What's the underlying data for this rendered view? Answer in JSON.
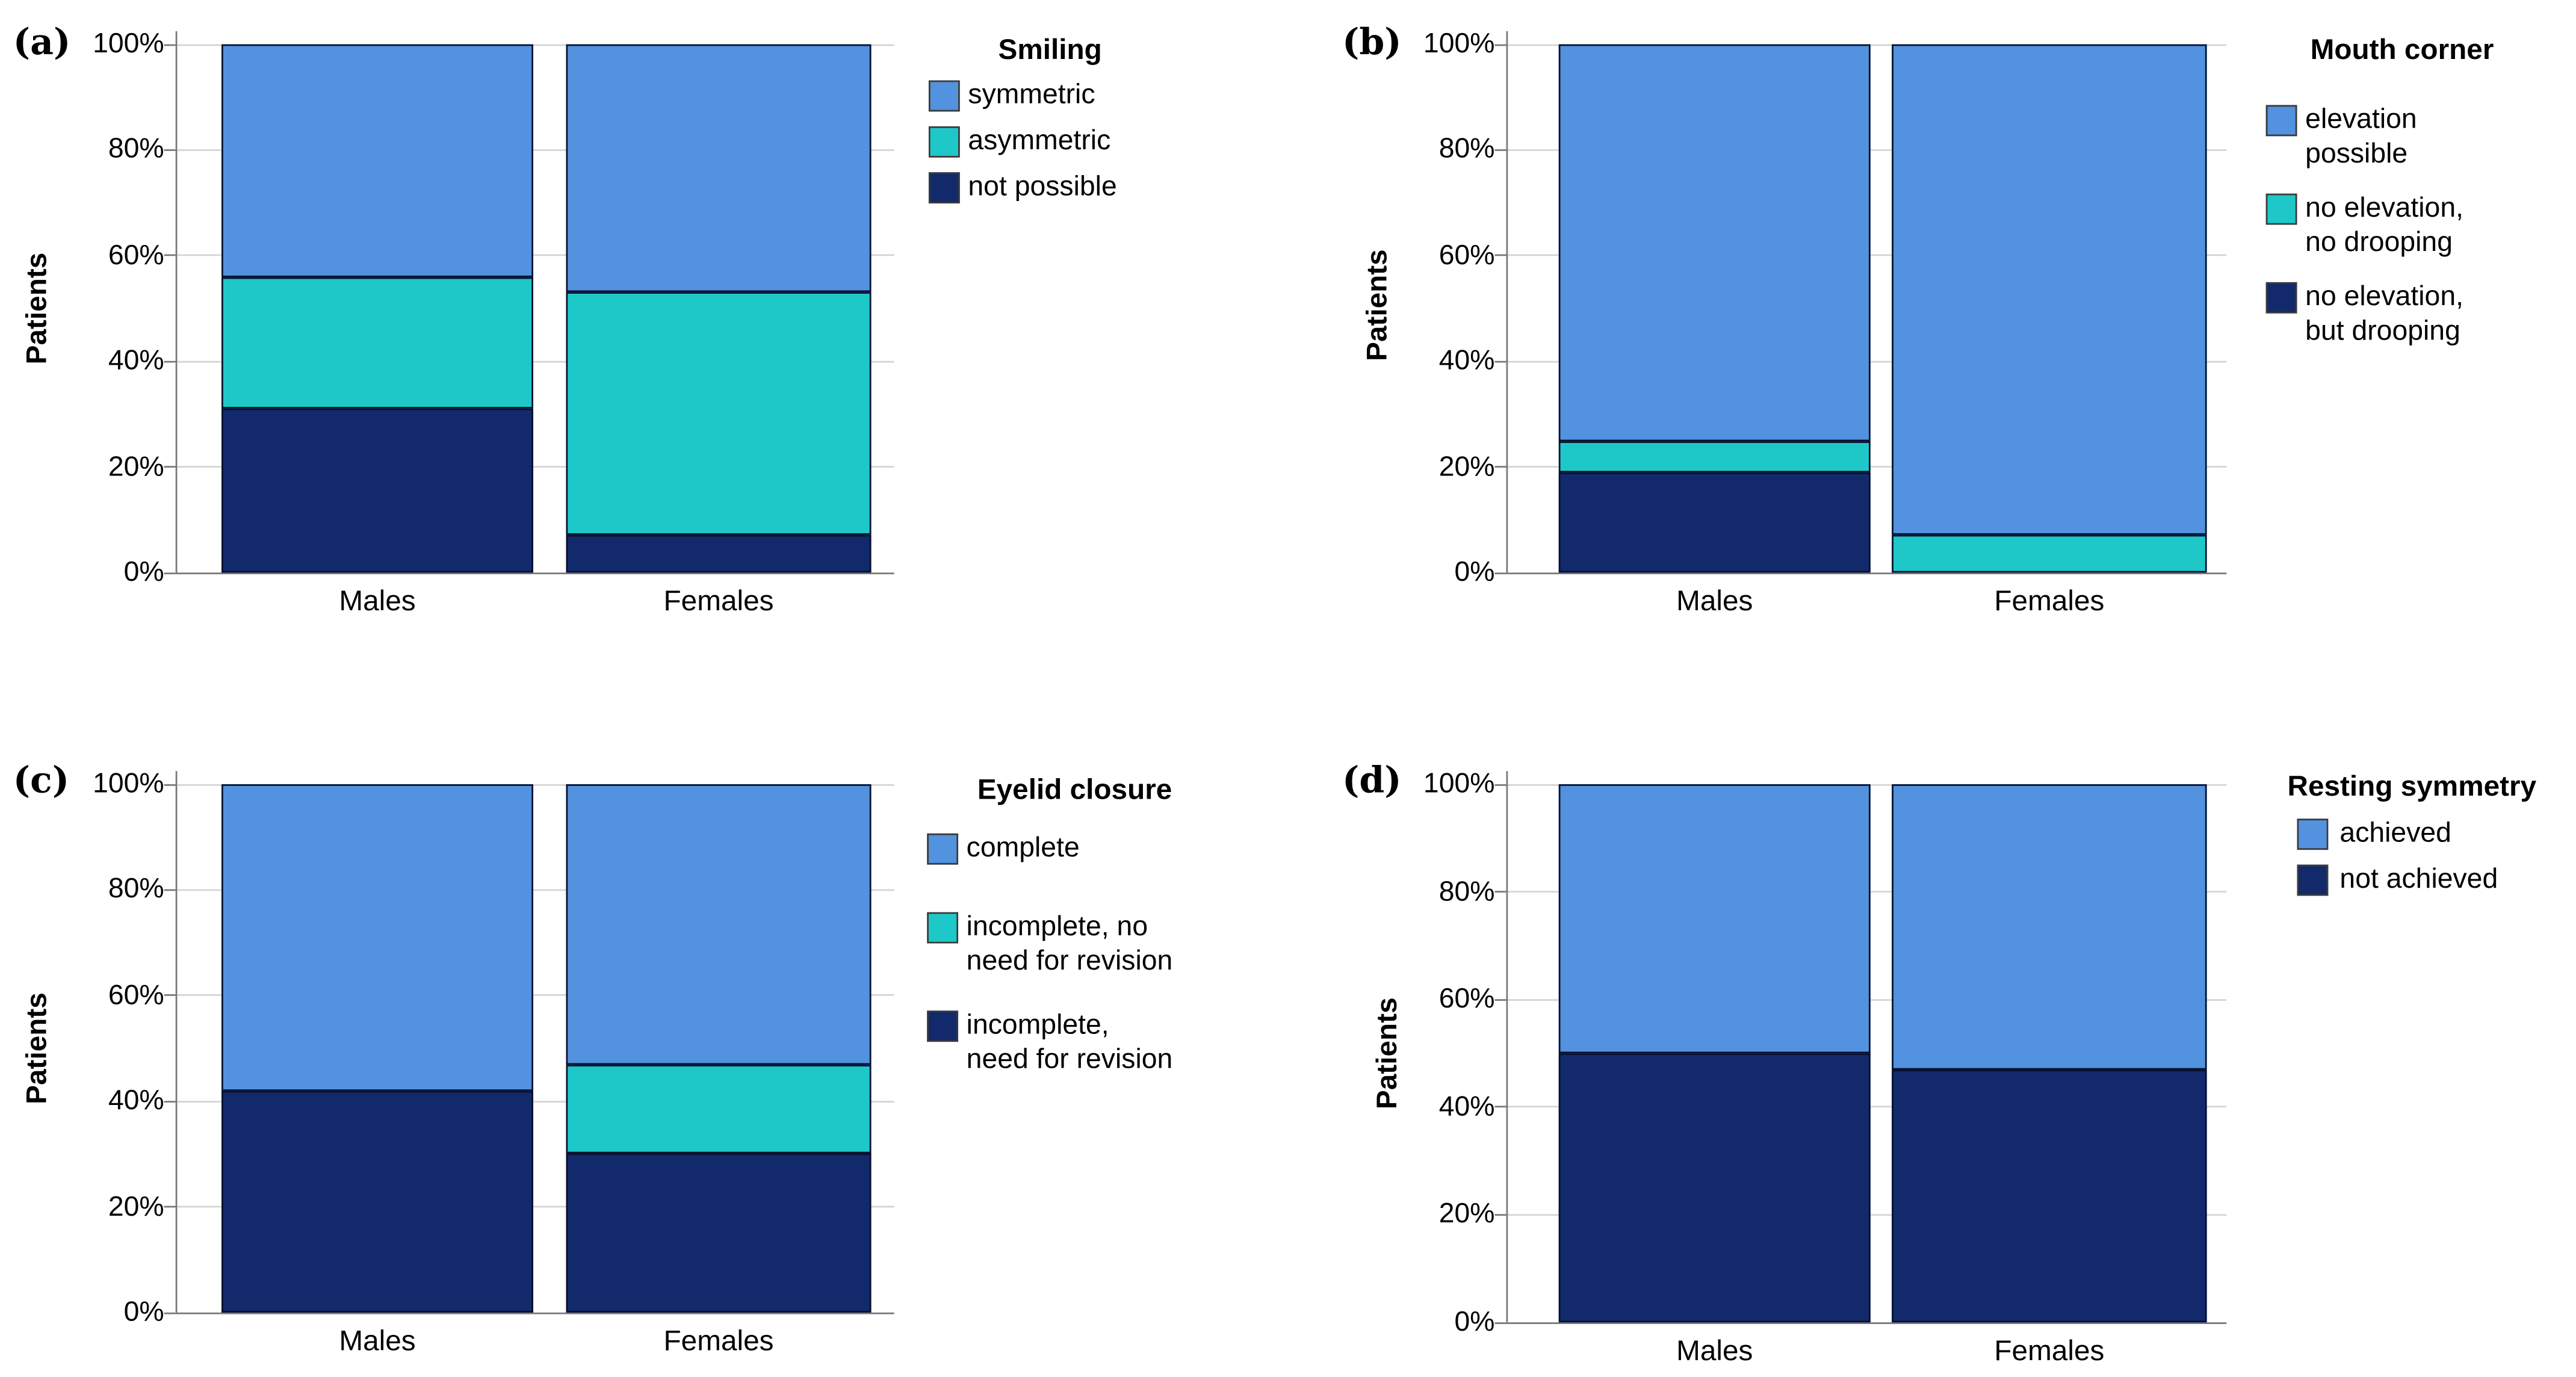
{
  "figure_background": "#ffffff",
  "colors": {
    "blue": "#5292DE",
    "teal": "#1EC8C8",
    "navy": "#122A6B",
    "gridline": "#D4D4D4",
    "axis": "#777777",
    "text": "#000000"
  },
  "chart_data": [
    {
      "type": "bar",
      "stacked": "percent",
      "panel_label": "(a)",
      "legend_title": "Smiling",
      "ylabel": "Patients",
      "xlabel": "",
      "categories": [
        "Males",
        "Females"
      ],
      "yticks": [
        "0%",
        "20%",
        "40%",
        "60%",
        "80%",
        "100%"
      ],
      "ylim": [
        0,
        100
      ],
      "grid": true,
      "legend_position": "right",
      "series": [
        {
          "name": "symmetric",
          "color": "blue",
          "values": [
            44,
            47
          ]
        },
        {
          "name": "asymmetric",
          "color": "teal",
          "values": [
            25,
            46
          ]
        },
        {
          "name": "not possible",
          "color": "navy",
          "values": [
            31,
            7
          ]
        }
      ]
    },
    {
      "type": "bar",
      "stacked": "percent",
      "panel_label": "(b)",
      "legend_title": "Mouth corner",
      "ylabel": "Patients",
      "xlabel": "",
      "categories": [
        "Males",
        "Females"
      ],
      "yticks": [
        "0%",
        "20%",
        "40%",
        "60%",
        "80%",
        "100%"
      ],
      "ylim": [
        0,
        100
      ],
      "grid": true,
      "legend_position": "right",
      "series": [
        {
          "name": "elevation\npossible",
          "color": "blue",
          "values": [
            75,
            93
          ]
        },
        {
          "name": "no elevation,\nno drooping",
          "color": "teal",
          "values": [
            6,
            7
          ]
        },
        {
          "name": "no elevation,\nbut drooping",
          "color": "navy",
          "values": [
            19,
            0
          ]
        }
      ]
    },
    {
      "type": "bar",
      "stacked": "percent",
      "panel_label": "(c)",
      "legend_title": "Eyelid closure",
      "ylabel": "Patients",
      "xlabel": "",
      "categories": [
        "Males",
        "Females"
      ],
      "yticks": [
        "0%",
        "20%",
        "40%",
        "60%",
        "80%",
        "100%"
      ],
      "ylim": [
        0,
        100
      ],
      "grid": true,
      "legend_position": "right",
      "series": [
        {
          "name": "complete",
          "color": "blue",
          "values": [
            58,
            53
          ]
        },
        {
          "name": "incomplete, no\nneed for revision",
          "color": "teal",
          "values": [
            0,
            17
          ]
        },
        {
          "name": "incomplete,\nneed for revision",
          "color": "navy",
          "values": [
            42,
            30
          ]
        }
      ]
    },
    {
      "type": "bar",
      "stacked": "percent",
      "panel_label": "(d)",
      "legend_title": "Resting symmetry",
      "ylabel": "Patients",
      "xlabel": "",
      "categories": [
        "Males",
        "Females"
      ],
      "yticks": [
        "0%",
        "20%",
        "40%",
        "60%",
        "80%",
        "100%"
      ],
      "ylim": [
        0,
        100
      ],
      "grid": true,
      "legend_position": "right",
      "series": [
        {
          "name": "achieved",
          "color": "blue",
          "values": [
            50,
            53
          ]
        },
        {
          "name": "not achieved",
          "color": "navy",
          "values": [
            50,
            47
          ]
        }
      ]
    }
  ]
}
